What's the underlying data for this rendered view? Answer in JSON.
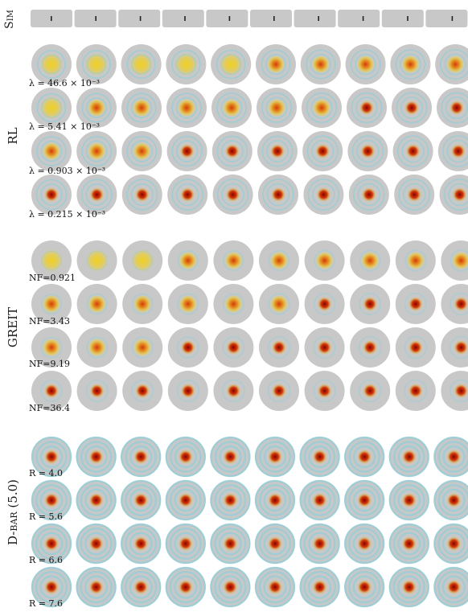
{
  "figure": {
    "columns": 10,
    "colors": {
      "background_disk": "#c8c8c8",
      "sim_bar": "#c8c8c8",
      "positive_strong": "#8b0000",
      "positive_mid": "#d23a0a",
      "positive_weak": "#f0d020",
      "negative": "#7fd0df"
    },
    "groups": [
      {
        "label": "Sim",
        "rows": [
          {
            "param": ""
          }
        ]
      },
      {
        "label": "RL",
        "rows": [
          {
            "param": "λ = 46.6 × 10⁻³"
          },
          {
            "param": "λ = 5.41 × 10⁻³"
          },
          {
            "param": "λ = 0.903 × 10⁻³"
          },
          {
            "param": "λ = 0.215 × 10⁻³"
          }
        ]
      },
      {
        "label": "GREIT",
        "rows": [
          {
            "param": "NF=0.921"
          },
          {
            "param": "NF=3.43"
          },
          {
            "param": "NF=9.19"
          },
          {
            "param": "NF=36.4"
          }
        ]
      },
      {
        "label": "D-bar (5.0)",
        "rows": [
          {
            "param": "R = 4.0"
          },
          {
            "param": "R = 5.6"
          },
          {
            "param": "R = 6.6"
          },
          {
            "param": "R = 7.6"
          }
        ]
      }
    ]
  }
}
